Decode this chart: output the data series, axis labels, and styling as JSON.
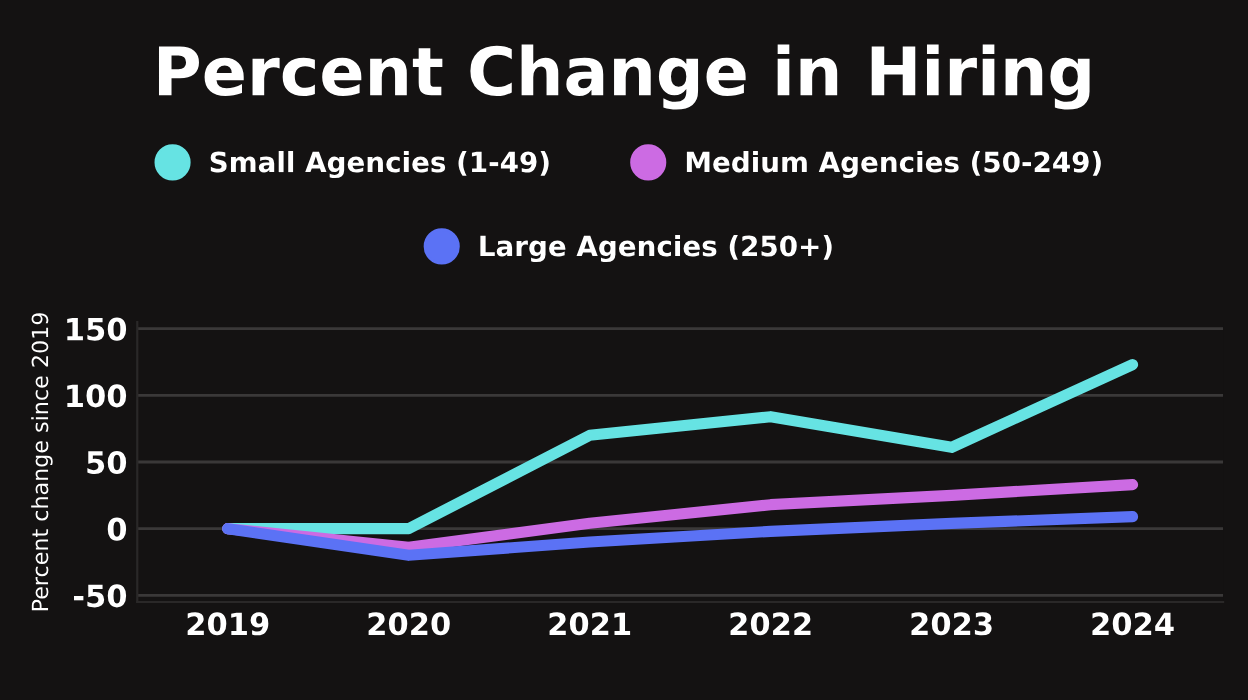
{
  "chart_data": {
    "type": "line",
    "title": "Percent Change in Hiring",
    "ylabel": "Percent change since 2019",
    "categories": [
      "2019",
      "2020",
      "2021",
      "2022",
      "2023",
      "2024"
    ],
    "series": [
      {
        "name": "Small Agencies (1-49)",
        "color": "#66e3e3",
        "values": [
          0,
          0,
          70,
          84,
          61,
          123
        ]
      },
      {
        "name": "Medium Agencies (50-249)",
        "color": "#cc6be3",
        "values": [
          0,
          -14,
          4,
          18,
          25,
          33
        ]
      },
      {
        "name": "Large Agencies (250+)",
        "color": "#5b72f5",
        "values": [
          0,
          -20,
          -10,
          -2,
          4,
          9
        ]
      }
    ],
    "ylim": [
      -55,
      155
    ],
    "yticks": [
      -50,
      0,
      50,
      100,
      150
    ],
    "grid": "y",
    "legend": "top",
    "marker": "none",
    "line_style": "solid"
  }
}
